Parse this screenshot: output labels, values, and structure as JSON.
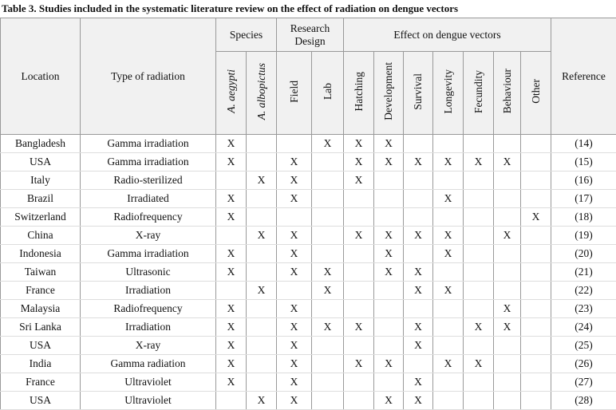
{
  "title": "Table 3. Studies included in the systematic literature review on the effect of radiation on dengue vectors",
  "table": {
    "columns": {
      "location": "Location",
      "type": "Type of radiation",
      "reference": "Reference"
    },
    "groups": [
      {
        "label": "Species",
        "columns": [
          "A. aegypti",
          "A. albopictus"
        ]
      },
      {
        "label": "Research Design",
        "columns": [
          "Field",
          "Lab"
        ]
      },
      {
        "label": "Effect on dengue vectors",
        "columns": [
          "Hatching",
          "Development",
          "Survival",
          "Longevity",
          "Fecundity",
          "Behaviour",
          "Other"
        ]
      }
    ],
    "rows": [
      [
        "Bangladesh",
        "Gamma irradiation",
        "X",
        null,
        null,
        "X",
        "X",
        "X",
        null,
        null,
        null,
        null,
        null,
        "(14)"
      ],
      [
        "USA",
        "Gamma irradiation",
        "X",
        null,
        "X",
        null,
        "X",
        "X",
        "X",
        "X",
        "X",
        "X",
        null,
        "(15)"
      ],
      [
        "Italy",
        "Radio-sterilized",
        null,
        "X",
        "X",
        null,
        "X",
        null,
        null,
        null,
        null,
        null,
        null,
        "(16)"
      ],
      [
        "Brazil",
        "Irradiated",
        "X",
        null,
        "X",
        null,
        null,
        null,
        null,
        "X",
        null,
        null,
        null,
        "(17)"
      ],
      [
        "Switzerland",
        "Radiofrequency",
        "X",
        null,
        null,
        null,
        null,
        null,
        null,
        null,
        null,
        null,
        "X",
        "(18)"
      ],
      [
        "China",
        "X-ray",
        null,
        "X",
        "X",
        null,
        "X",
        "X",
        "X",
        "X",
        null,
        "X",
        null,
        "(19)"
      ],
      [
        "Indonesia",
        "Gamma irradiation",
        "X",
        null,
        "X",
        null,
        null,
        "X",
        null,
        "X",
        null,
        null,
        null,
        "(20)"
      ],
      [
        "Taiwan",
        "Ultrasonic",
        "X",
        null,
        "X",
        "X",
        null,
        "X",
        "X",
        null,
        null,
        null,
        null,
        "(21)"
      ],
      [
        "France",
        "Irradiation",
        null,
        "X",
        null,
        "X",
        null,
        null,
        "X",
        "X",
        null,
        null,
        null,
        "(22)"
      ],
      [
        "Malaysia",
        "Radiofrequency",
        "X",
        null,
        "X",
        null,
        null,
        null,
        null,
        null,
        null,
        "X",
        null,
        "(23)"
      ],
      [
        "Sri Lanka",
        "Irradiation",
        "X",
        null,
        "X",
        "X",
        "X",
        null,
        "X",
        null,
        "X",
        "X",
        null,
        "(24)"
      ],
      [
        "USA",
        "X-ray",
        "X",
        null,
        "X",
        null,
        null,
        null,
        "X",
        null,
        null,
        null,
        null,
        "(25)"
      ],
      [
        "India",
        "Gamma radiation",
        "X",
        null,
        "X",
        null,
        "X",
        "X",
        null,
        "X",
        "X",
        null,
        null,
        "(26)"
      ],
      [
        "France",
        "Ultraviolet",
        "X",
        null,
        "X",
        null,
        null,
        null,
        "X",
        null,
        null,
        null,
        null,
        "(27)"
      ],
      [
        "USA",
        "Ultraviolet",
        null,
        "X",
        "X",
        null,
        null,
        "X",
        "X",
        null,
        null,
        null,
        null,
        "(28)"
      ]
    ]
  }
}
